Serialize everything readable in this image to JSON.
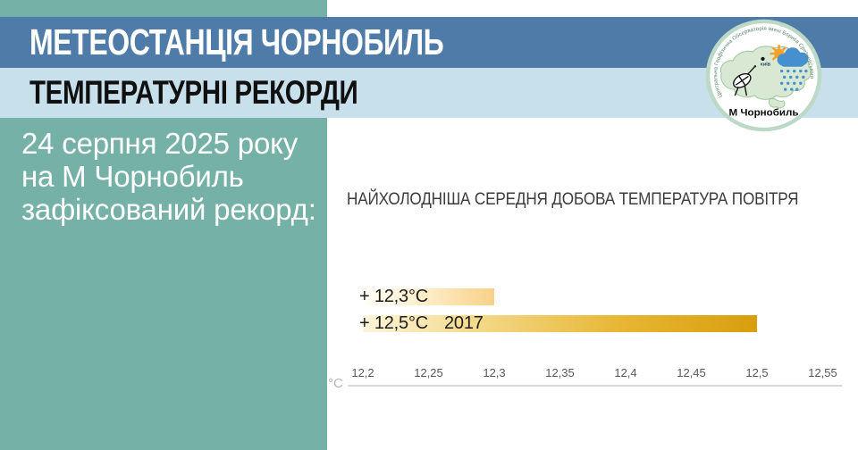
{
  "header": {
    "title": "МЕТЕОСТАНЦІЯ ЧОРНОБИЛЬ",
    "subtitle": "ТЕМПЕРАТУРНІ РЕКОРДИ"
  },
  "sidebar": {
    "lines": [
      "24 серпня 2025 року",
      "на М Чорнобиль",
      "зафіксований рекорд:"
    ]
  },
  "logo": {
    "ring_text": "Центральна Геофізична Обсерваторія імені Бориса Срезневського",
    "station_label": "М Чорнобиль",
    "city_label": "КИЇВ",
    "icons": [
      "ukraine-map",
      "sun",
      "rain-cloud",
      "satellite-dish",
      "kyiv-dot"
    ]
  },
  "chart_data": {
    "type": "bar",
    "orientation": "horizontal",
    "title": "НАЙХОЛОДНІША СЕРЕДНЯ ДОБОВА ТЕМПЕРАТУРА ПОВІТРЯ",
    "x_axis_unit": "°C",
    "xlim": [
      12.2,
      12.55
    ],
    "x_tick_labels": [
      "12,2",
      "12,25",
      "12,3",
      "12,35",
      "12,4",
      "12,45",
      "12,5",
      "12,55"
    ],
    "x_tick_values": [
      12.2,
      12.25,
      12.3,
      12.35,
      12.4,
      12.45,
      12.5,
      12.55
    ],
    "grid": false,
    "legend": false,
    "bars": [
      {
        "name": "new-record-2025",
        "value": 12.3,
        "value_label": "+ 12,3°C",
        "year_label": "",
        "gradient": [
          "#fffef9",
          "#fdecc4",
          "#f8d189"
        ]
      },
      {
        "name": "old-record-2017",
        "value": 12.5,
        "value_label": "+ 12,5°C",
        "year_label": "2017",
        "gradient": [
          "#fdf5da",
          "#f2d57e",
          "#e7b531",
          "#d89e0f"
        ]
      }
    ]
  },
  "colors": {
    "sidebar_teal": "#76b1a7",
    "header_blue": "#4e7ba7",
    "subheader_blue": "#c8dfec",
    "logo_ring_green": "#bcd8c6",
    "map_green": "#d8e8d2",
    "map_outline_green": "#9cc49c",
    "cloud_blue": "#4690d0",
    "sun_orange": "#f5a028",
    "axis_line": "#d8d8d8",
    "tick_text": "#58585a",
    "unit_text": "#b4b4b4",
    "chart_title_text": "#3c3c3c",
    "bar_label_text": "#1e1e1e"
  }
}
